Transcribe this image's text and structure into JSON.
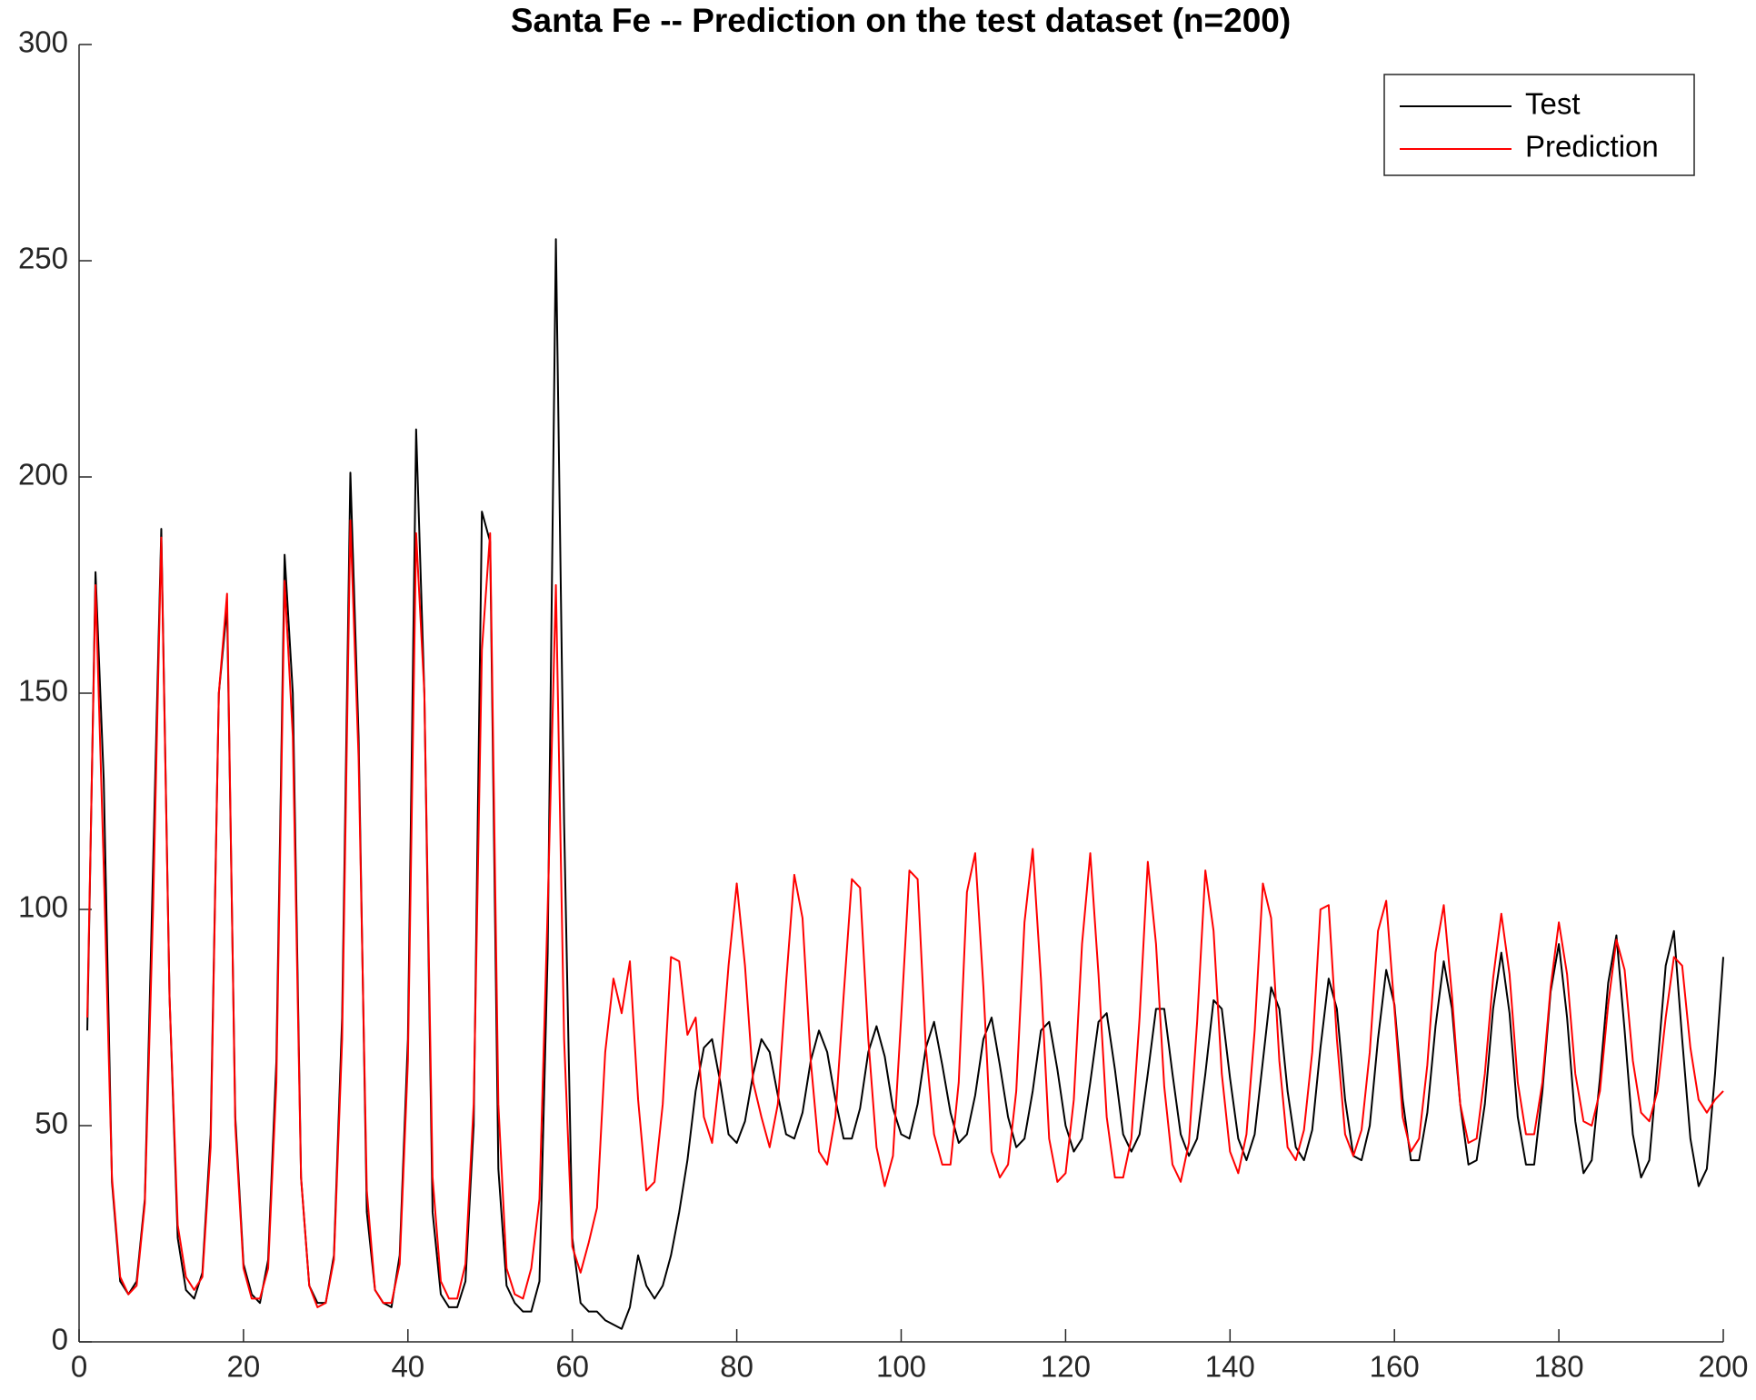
{
  "chart_data": {
    "type": "line",
    "title": "Santa Fe -- Prediction on the test dataset (n=200)",
    "x": [
      1,
      2,
      3,
      4,
      5,
      6,
      7,
      8,
      9,
      10,
      11,
      12,
      13,
      14,
      15,
      16,
      17,
      18,
      19,
      20,
      21,
      22,
      23,
      24,
      25,
      26,
      27,
      28,
      29,
      30,
      31,
      32,
      33,
      34,
      35,
      36,
      37,
      38,
      39,
      40,
      41,
      42,
      43,
      44,
      45,
      46,
      47,
      48,
      49,
      50,
      51,
      52,
      53,
      54,
      55,
      56,
      57,
      58,
      59,
      60,
      61,
      62,
      63,
      64,
      65,
      66,
      67,
      68,
      69,
      70,
      71,
      72,
      73,
      74,
      75,
      76,
      77,
      78,
      79,
      80,
      81,
      82,
      83,
      84,
      85,
      86,
      87,
      88,
      89,
      90,
      91,
      92,
      93,
      94,
      95,
      96,
      97,
      98,
      99,
      100,
      101,
      102,
      103,
      104,
      105,
      106,
      107,
      108,
      109,
      110,
      111,
      112,
      113,
      114,
      115,
      116,
      117,
      118,
      119,
      120,
      121,
      122,
      123,
      124,
      125,
      126,
      127,
      128,
      129,
      130,
      131,
      132,
      133,
      134,
      135,
      136,
      137,
      138,
      139,
      140,
      141,
      142,
      143,
      144,
      145,
      146,
      147,
      148,
      149,
      150,
      151,
      152,
      153,
      154,
      155,
      156,
      157,
      158,
      159,
      160,
      161,
      162,
      163,
      164,
      165,
      166,
      167,
      168,
      169,
      170,
      171,
      172,
      173,
      174,
      175,
      176,
      177,
      178,
      179,
      180,
      181,
      182,
      183,
      184,
      185,
      186,
      187,
      188,
      189,
      190,
      191,
      192,
      193,
      194,
      195,
      196,
      197,
      198,
      199,
      200
    ],
    "series": [
      {
        "name": "Test",
        "color": "#000000",
        "values": [
          72,
          178,
          130,
          37,
          14,
          11,
          14,
          33,
          110,
          188,
          80,
          24,
          12,
          10,
          16,
          48,
          150,
          170,
          52,
          18,
          11,
          9,
          19,
          65,
          182,
          150,
          38,
          13,
          9,
          9,
          20,
          75,
          201,
          140,
          30,
          12,
          9,
          8,
          20,
          70,
          211,
          150,
          30,
          11,
          8,
          8,
          14,
          50,
          192,
          185,
          40,
          13,
          9,
          7,
          7,
          14,
          90,
          255,
          120,
          24,
          9,
          7,
          7,
          5,
          4,
          3,
          8,
          20,
          13,
          10,
          13,
          20,
          30,
          42,
          58,
          68,
          70,
          60,
          48,
          46,
          51,
          62,
          70,
          67,
          57,
          48,
          47,
          53,
          65,
          72,
          67,
          56,
          47,
          47,
          54,
          67,
          73,
          66,
          54,
          48,
          47,
          55,
          68,
          74,
          64,
          53,
          46,
          48,
          57,
          70,
          75,
          64,
          52,
          45,
          47,
          58,
          72,
          74,
          63,
          50,
          44,
          47,
          60,
          74,
          76,
          63,
          48,
          44,
          48,
          62,
          77,
          77,
          62,
          48,
          43,
          47,
          62,
          79,
          77,
          61,
          47,
          42,
          48,
          65,
          82,
          77,
          58,
          45,
          42,
          49,
          68,
          84,
          77,
          56,
          43,
          42,
          50,
          70,
          86,
          78,
          56,
          42,
          42,
          53,
          73,
          88,
          77,
          55,
          41,
          42,
          55,
          77,
          90,
          76,
          52,
          41,
          41,
          58,
          81,
          92,
          75,
          51,
          39,
          42,
          61,
          83,
          94,
          72,
          48,
          38,
          42,
          64,
          87,
          95,
          70,
          47,
          36,
          40,
          62,
          89
        ]
      },
      {
        "name": "Prediction",
        "color": "#ff0000",
        "values": [
          75,
          175,
          110,
          38,
          15,
          11,
          13,
          32,
          100,
          186,
          80,
          27,
          15,
          12,
          15,
          45,
          150,
          173,
          50,
          17,
          10,
          10,
          17,
          60,
          176,
          140,
          38,
          13,
          8,
          9,
          19,
          70,
          190,
          135,
          35,
          12,
          9,
          9,
          18,
          65,
          187,
          150,
          38,
          14,
          10,
          10,
          18,
          55,
          160,
          187,
          55,
          17,
          11,
          10,
          17,
          33,
          100,
          175,
          70,
          22,
          16,
          23,
          31,
          67,
          84,
          76,
          88,
          56,
          35,
          37,
          55,
          89,
          88,
          71,
          75,
          52,
          46,
          63,
          87,
          106,
          87,
          60,
          52,
          45,
          55,
          83,
          108,
          98,
          65,
          44,
          41,
          52,
          80,
          107,
          105,
          70,
          45,
          36,
          43,
          75,
          109,
          107,
          68,
          48,
          41,
          41,
          60,
          104,
          113,
          82,
          44,
          38,
          41,
          58,
          97,
          114,
          84,
          47,
          37,
          39,
          56,
          92,
          113,
          85,
          52,
          38,
          38,
          47,
          75,
          111,
          92,
          59,
          41,
          37,
          46,
          74,
          109,
          95,
          62,
          44,
          39,
          48,
          72,
          106,
          98,
          65,
          45,
          42,
          49,
          67,
          100,
          101,
          70,
          48,
          43,
          49,
          67,
          95,
          102,
          77,
          52,
          44,
          47,
          64,
          90,
          101,
          80,
          55,
          46,
          47,
          62,
          84,
          99,
          85,
          60,
          48,
          48,
          60,
          82,
          97,
          85,
          62,
          51,
          50,
          58,
          78,
          93,
          86,
          65,
          53,
          51,
          58,
          75,
          89,
          87,
          68,
          56,
          53,
          56,
          58
        ]
      }
    ],
    "xlim": [
      0,
      200
    ],
    "xticks": [
      0,
      20,
      40,
      60,
      80,
      100,
      120,
      140,
      160,
      180,
      200
    ],
    "ylim": [
      0,
      300
    ],
    "yticks": [
      0,
      50,
      100,
      150,
      200,
      250,
      300
    ],
    "legend": "top-right"
  }
}
